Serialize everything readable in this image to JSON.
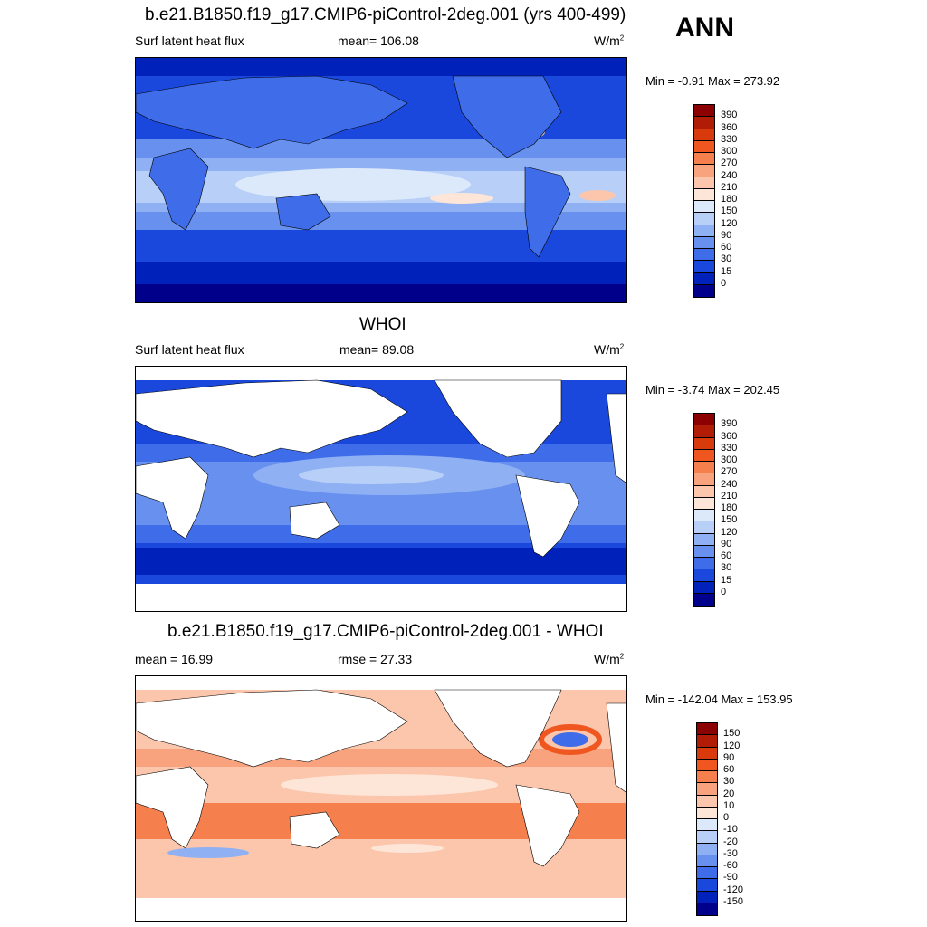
{
  "season": "ANN",
  "units": "W/m",
  "units_sup": "2",
  "panels": [
    {
      "title": "b.e21.B1850.f19_g17.CMIP6-piControl-2deg.001 (yrs 400-499)",
      "variable": "Surf latent heat flux",
      "stat_label": "mean= 106.08",
      "minmax": "Min =  -0.91 Max = 273.92"
    },
    {
      "title": "WHOI",
      "variable": "Surf latent heat flux",
      "stat_label": "mean=  89.08",
      "minmax": "Min =  -3.74 Max = 202.45"
    },
    {
      "title": "b.e21.B1850.f19_g17.CMIP6-piControl-2deg.001 - WHOI",
      "mean_label": "mean =  16.99",
      "rmse_label": "rmse =  27.33",
      "minmax": "Min = -142.04 Max = 153.95"
    }
  ],
  "colorbars": {
    "flux": {
      "labels": [
        "390",
        "360",
        "330",
        "300",
        "270",
        "240",
        "210",
        "180",
        "150",
        "120",
        "90",
        "60",
        "30",
        "15",
        "0"
      ],
      "colors": [
        "#8b0000",
        "#b01c05",
        "#d93a0b",
        "#f0561f",
        "#f5804e",
        "#f8a37d",
        "#fbc6ab",
        "#fde6d8",
        "#dce9fb",
        "#b8d0f8",
        "#8fb1f3",
        "#6890ee",
        "#3f6ce8",
        "#1a48dd",
        "#0022bb",
        "#00008b"
      ]
    },
    "diff": {
      "labels": [
        "150",
        "120",
        "90",
        "60",
        "30",
        "20",
        "10",
        "0",
        "-10",
        "-20",
        "-30",
        "-60",
        "-90",
        "-120",
        "-150"
      ],
      "colors": [
        "#8b0000",
        "#b01c05",
        "#d93a0b",
        "#f0561f",
        "#f5804e",
        "#f8a37d",
        "#fbc6ab",
        "#fde6d8",
        "#dce9fb",
        "#b8d0f8",
        "#8fb1f3",
        "#6890ee",
        "#3f6ce8",
        "#1a48dd",
        "#0022bb",
        "#00008b"
      ]
    }
  }
}
